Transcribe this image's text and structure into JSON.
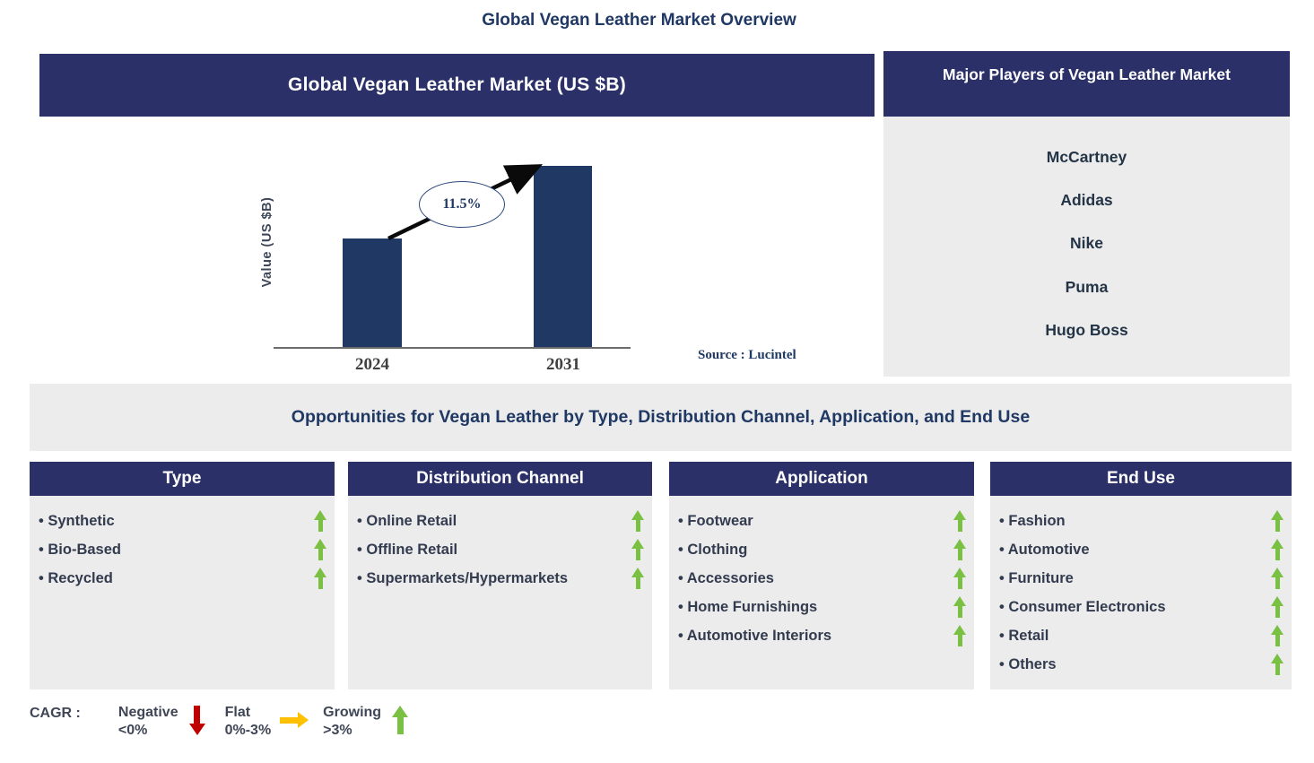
{
  "page": {
    "title": "Global Vegan Leather Market Overview"
  },
  "market_panel": {
    "header": "Global Vegan Leather Market (US $B)",
    "source": "Source : Lucintel"
  },
  "chart_data": {
    "type": "bar",
    "title": "Global Vegan Leather Market (US $B)",
    "categories": [
      "2024",
      "2031"
    ],
    "relative_heights": [
      0.6,
      1.0
    ],
    "values_labeled": false,
    "cagr_label": "11.5%",
    "xlabel": "",
    "ylabel": "Value (US $B)",
    "grid": false,
    "legend": false,
    "bar_color": "#1f3864",
    "annotation": "CAGR 11.5% growth arrow from 2024 bar to 2031 bar"
  },
  "players_panel": {
    "header": "Major Players of Vegan Leather Market",
    "players": [
      "McCartney",
      "Adidas",
      "Nike",
      "Puma",
      "Hugo Boss"
    ]
  },
  "opportunities": {
    "banner": "Opportunities for Vegan Leather by Type, Distribution Channel, Application, and End Use",
    "columns": [
      {
        "header": "Type",
        "items": [
          "Synthetic",
          "Bio-Based",
          "Recycled"
        ]
      },
      {
        "header": "Distribution Channel",
        "items": [
          "Online  Retail",
          "Offline  Retail",
          "Supermarkets/Hypermarkets"
        ]
      },
      {
        "header": "Application",
        "items": [
          "Footwear",
          "Clothing",
          "Accessories",
          "Home  Furnishings",
          "Automotive  Interiors"
        ]
      },
      {
        "header": "End Use",
        "items": [
          "Fashion",
          "Automotive",
          "Furniture",
          "Consumer Electronics",
          "Retail",
          "Others"
        ]
      }
    ],
    "item_trend": "growing"
  },
  "legend": {
    "label": "CAGR :",
    "entries": [
      {
        "name": "Negative",
        "range": "<0%",
        "direction": "down",
        "color": "#c00000"
      },
      {
        "name": "Flat",
        "range": "0%-3%",
        "direction": "right",
        "color": "#ffc000"
      },
      {
        "name": "Growing",
        "range": ">3%",
        "direction": "up",
        "color": "#7ac143"
      }
    ]
  },
  "colors": {
    "header_navy": "#2b3168",
    "bar_navy": "#1f3864",
    "panel_gray": "#ececec",
    "title_navy": "#1f3864",
    "item_text": "#333b4f",
    "growing_green": "#7ac143",
    "negative_red": "#c00000",
    "flat_amber": "#ffc000"
  }
}
